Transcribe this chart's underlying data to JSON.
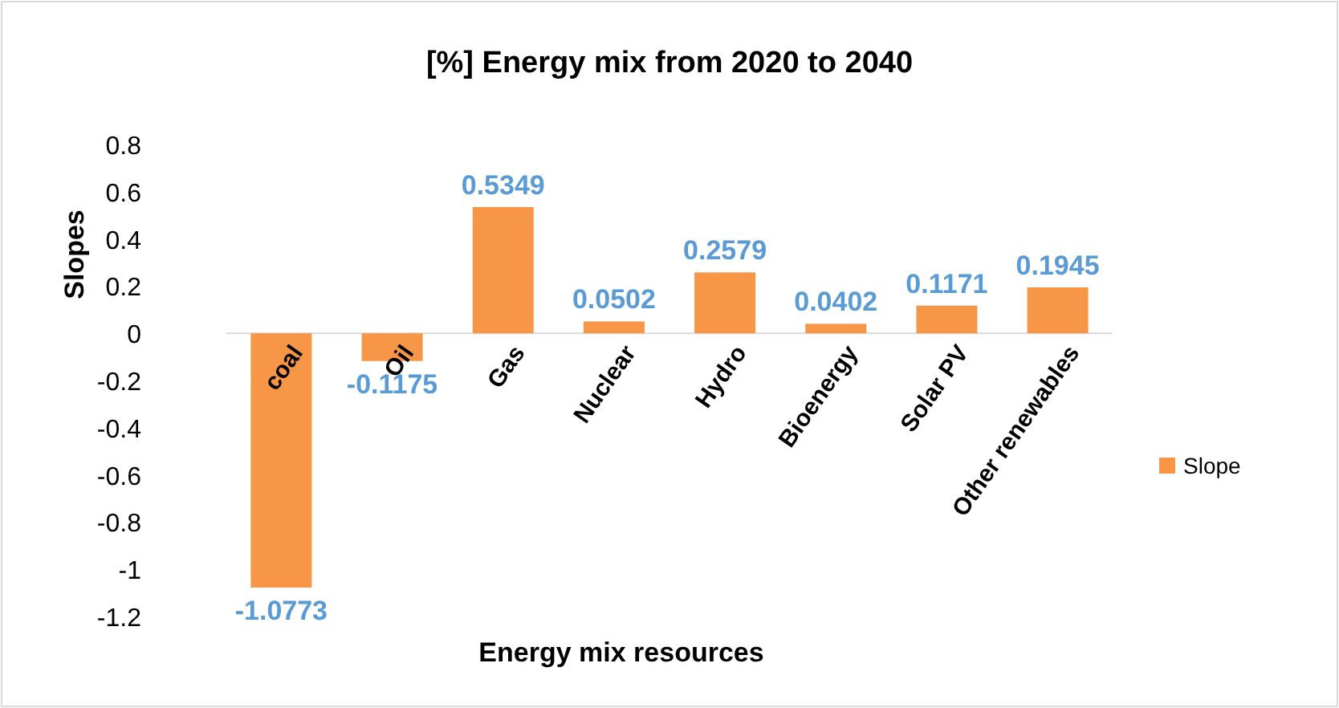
{
  "chart_data": {
    "type": "bar",
    "title": "[%] Energy mix from 2020 to 2040",
    "xlabel": "Energy mix resources",
    "ylabel": "Slopes",
    "categories": [
      "coal",
      "Oil",
      "Gas",
      "Nuclear",
      "Hydro",
      "Bioenergy",
      "Solar PV",
      "Other renewables"
    ],
    "series": [
      {
        "name": "Slope",
        "color": "#f79646",
        "values": [
          -1.0773,
          -0.1175,
          0.5349,
          0.0502,
          0.2579,
          0.0402,
          0.1171,
          0.1945
        ]
      }
    ],
    "ylim": [
      -1.2,
      0.8
    ],
    "yticks": [
      {
        "value": -1.2,
        "label": "-1.2"
      },
      {
        "value": -1,
        "label": "-1"
      },
      {
        "value": -0.8,
        "label": "-0.8"
      },
      {
        "value": -0.6,
        "label": "-0.6"
      },
      {
        "value": -0.4,
        "label": "-0.4"
      },
      {
        "value": -0.2,
        "label": "-0.2"
      },
      0,
      0.2,
      0.4,
      0.6,
      0.8
    ],
    "data_labels": true,
    "legend": "right",
    "grid": false
  }
}
